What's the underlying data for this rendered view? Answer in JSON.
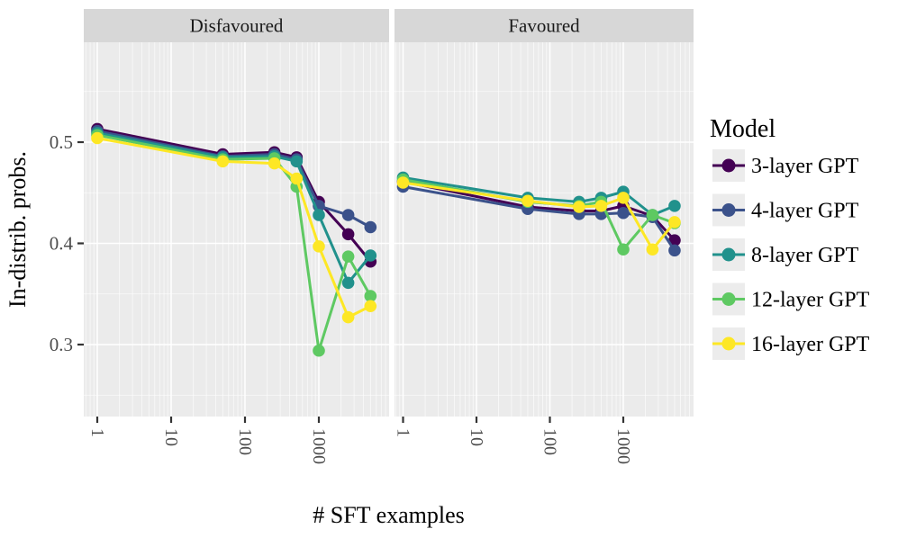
{
  "figure": {
    "x_axis_title": "# SFT examples",
    "y_axis_title": "In-distrib. probs.",
    "facet_labels": [
      "Disfavoured",
      "Favoured"
    ],
    "x_tick_labels": [
      "1",
      "10",
      "100",
      "1000"
    ],
    "y_tick_labels": [
      "0.5",
      "0.4",
      "0.3"
    ]
  },
  "legend": {
    "title": "Model",
    "entries": [
      {
        "label": "3-layer GPT",
        "color": "#440154"
      },
      {
        "label": "4-layer GPT",
        "color": "#3b528b"
      },
      {
        "label": "8-layer GPT",
        "color": "#21918c"
      },
      {
        "label": "12-layer GPT",
        "color": "#5ec962"
      },
      {
        "label": "16-layer GPT",
        "color": "#fde725"
      }
    ]
  },
  "colors": {
    "panel_background": "#ebebeb",
    "strip_background": "#d7d7d7",
    "gridline": "#ffffff",
    "tick_mark": "#333333",
    "tick_label": "#4d4d4d",
    "axis_title": "#000000",
    "legend_key_background": "#ececec"
  },
  "chart_data": {
    "type": "line",
    "xscale": "log",
    "x": [
      1,
      50,
      250,
      500,
      1000,
      2500,
      5000
    ],
    "x_ticks": [
      1,
      10,
      100,
      1000
    ],
    "y_ticks": [
      0.5,
      0.4,
      0.3
    ],
    "y_minor_ticks": [
      0.55,
      0.45,
      0.35,
      0.25
    ],
    "ylim": [
      0.23,
      0.6
    ],
    "xlabel": "# SFT examples",
    "ylabel": "In-distrib. probs.",
    "legend_position": "right",
    "grid": true,
    "facets": [
      {
        "name": "Disfavoured",
        "series": [
          {
            "name": "3-layer GPT",
            "color": "#440154",
            "values": [
              0.513,
              0.488,
              0.49,
              0.485,
              0.441,
              0.409,
              0.382
            ]
          },
          {
            "name": "4-layer GPT",
            "color": "#3b528b",
            "values": [
              0.511,
              0.486,
              0.488,
              0.483,
              0.437,
              0.428,
              0.416
            ]
          },
          {
            "name": "8-layer GPT",
            "color": "#21918c",
            "values": [
              0.509,
              0.485,
              0.486,
              0.481,
              0.428,
              0.361,
              0.388
            ]
          },
          {
            "name": "12-layer GPT",
            "color": "#5ec962",
            "values": [
              0.507,
              0.483,
              0.484,
              0.456,
              0.294,
              0.387,
              0.348
            ]
          },
          {
            "name": "16-layer GPT",
            "color": "#fde725",
            "values": [
              0.504,
              0.481,
              0.479,
              0.464,
              0.397,
              0.327,
              0.338
            ]
          }
        ]
      },
      {
        "name": "Favoured",
        "series": [
          {
            "name": "3-layer GPT",
            "color": "#440154",
            "values": [
              0.461,
              0.436,
              0.432,
              0.432,
              0.437,
              0.427,
              0.403
            ]
          },
          {
            "name": "4-layer GPT",
            "color": "#3b528b",
            "values": [
              0.456,
              0.434,
              0.429,
              0.429,
              0.43,
              0.426,
              0.393
            ]
          },
          {
            "name": "8-layer GPT",
            "color": "#21918c",
            "values": [
              0.465,
              0.445,
              0.441,
              0.445,
              0.451,
              0.428,
              0.437
            ]
          },
          {
            "name": "12-layer GPT",
            "color": "#5ec962",
            "values": [
              0.463,
              0.441,
              0.437,
              0.441,
              0.394,
              0.428,
              0.42
            ]
          },
          {
            "name": "16-layer GPT",
            "color": "#fde725",
            "values": [
              0.46,
              0.442,
              0.436,
              0.437,
              0.445,
              0.394,
              0.421
            ]
          }
        ]
      }
    ]
  }
}
